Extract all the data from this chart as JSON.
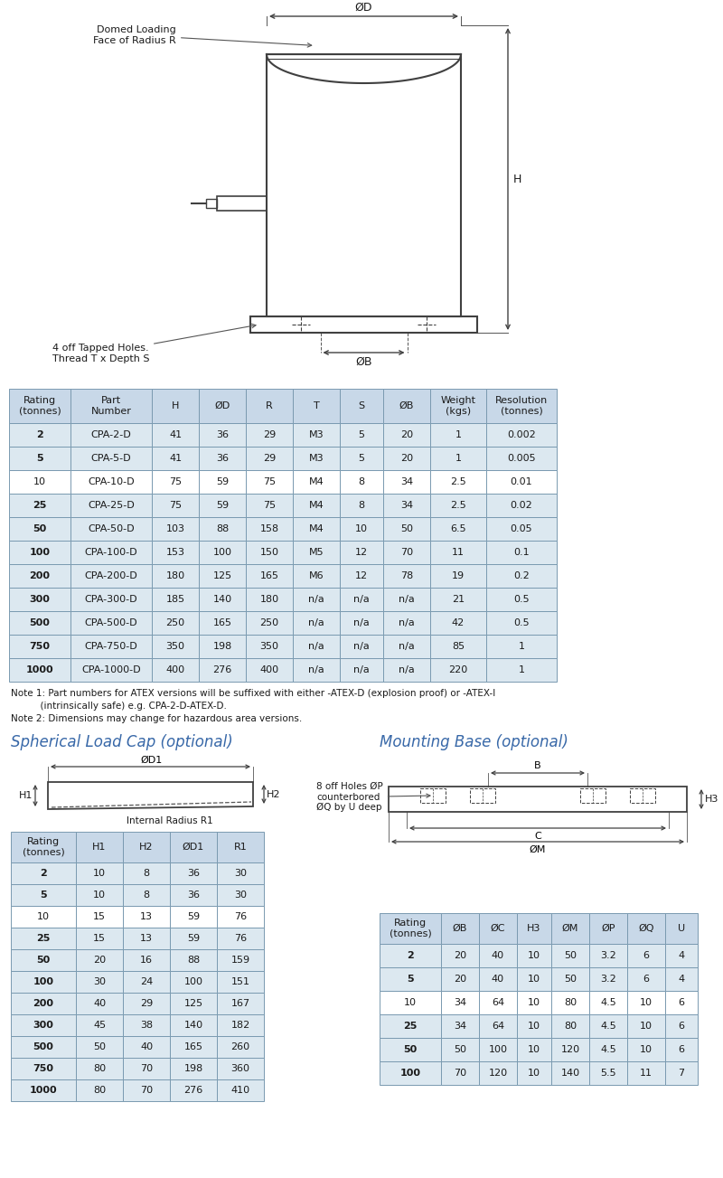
{
  "main_table_headers": [
    "Rating\n(tonnes)",
    "Part\nNumber",
    "H",
    "ØD",
    "R",
    "T",
    "S",
    "ØB",
    "Weight\n(kgs)",
    "Resolution\n(tonnes)"
  ],
  "main_table_data": [
    [
      "2",
      "CPA-2-D",
      "41",
      "36",
      "29",
      "M3",
      "5",
      "20",
      "1",
      "0.002"
    ],
    [
      "5",
      "CPA-5-D",
      "41",
      "36",
      "29",
      "M3",
      "5",
      "20",
      "1",
      "0.005"
    ],
    [
      "10",
      "CPA-10-D",
      "75",
      "59",
      "75",
      "M4",
      "8",
      "34",
      "2.5",
      "0.01"
    ],
    [
      "25",
      "CPA-25-D",
      "75",
      "59",
      "75",
      "M4",
      "8",
      "34",
      "2.5",
      "0.02"
    ],
    [
      "50",
      "CPA-50-D",
      "103",
      "88",
      "158",
      "M4",
      "10",
      "50",
      "6.5",
      "0.05"
    ],
    [
      "100",
      "CPA-100-D",
      "153",
      "100",
      "150",
      "M5",
      "12",
      "70",
      "11",
      "0.1"
    ],
    [
      "200",
      "CPA-200-D",
      "180",
      "125",
      "165",
      "M6",
      "12",
      "78",
      "19",
      "0.2"
    ],
    [
      "300",
      "CPA-300-D",
      "185",
      "140",
      "180",
      "n/a",
      "n/a",
      "n/a",
      "21",
      "0.5"
    ],
    [
      "500",
      "CPA-500-D",
      "250",
      "165",
      "250",
      "n/a",
      "n/a",
      "n/a",
      "42",
      "0.5"
    ],
    [
      "750",
      "CPA-750-D",
      "350",
      "198",
      "350",
      "n/a",
      "n/a",
      "n/a",
      "85",
      "1"
    ],
    [
      "1000",
      "CPA-1000-D",
      "400",
      "276",
      "400",
      "n/a",
      "n/a",
      "n/a",
      "220",
      "1"
    ]
  ],
  "note1": "Note 1: Part numbers for ATEX versions will be suffixed with either -ATEX-D (explosion proof) or -ATEX-I",
  "note1b": "          (intrinsically safe) e.g. CPA-2-D-ATEX-D.",
  "note2": "Note 2: Dimensions may change for hazardous area versions.",
  "cap_table_headers": [
    "Rating\n(tonnes)",
    "H1",
    "H2",
    "ØD1",
    "R1"
  ],
  "cap_table_data": [
    [
      "2",
      "10",
      "8",
      "36",
      "30"
    ],
    [
      "5",
      "10",
      "8",
      "36",
      "30"
    ],
    [
      "10",
      "15",
      "13",
      "59",
      "76"
    ],
    [
      "25",
      "15",
      "13",
      "59",
      "76"
    ],
    [
      "50",
      "20",
      "16",
      "88",
      "159"
    ],
    [
      "100",
      "30",
      "24",
      "100",
      "151"
    ],
    [
      "200",
      "40",
      "29",
      "125",
      "167"
    ],
    [
      "300",
      "45",
      "38",
      "140",
      "182"
    ],
    [
      "500",
      "50",
      "40",
      "165",
      "260"
    ],
    [
      "750",
      "80",
      "70",
      "198",
      "360"
    ],
    [
      "1000",
      "80",
      "70",
      "276",
      "410"
    ]
  ],
  "mount_table_headers": [
    "Rating\n(tonnes)",
    "ØB",
    "ØC",
    "H3",
    "ØM",
    "ØP",
    "ØQ",
    "U"
  ],
  "mount_table_data": [
    [
      "2",
      "20",
      "40",
      "10",
      "50",
      "3.2",
      "6",
      "4"
    ],
    [
      "5",
      "20",
      "40",
      "10",
      "50",
      "3.2",
      "6",
      "4"
    ],
    [
      "10",
      "34",
      "64",
      "10",
      "80",
      "4.5",
      "10",
      "6"
    ],
    [
      "25",
      "34",
      "64",
      "10",
      "80",
      "4.5",
      "10",
      "6"
    ],
    [
      "50",
      "50",
      "100",
      "10",
      "120",
      "4.5",
      "10",
      "6"
    ],
    [
      "100",
      "70",
      "120",
      "10",
      "140",
      "5.5",
      "11",
      "7"
    ]
  ],
  "header_bg": "#c8d8e8",
  "row_bg_alt": "#dce8f0",
  "row_bg_white": "#ffffff",
  "border_color": "#7a9ab0",
  "text_color": "#1a1a1a",
  "bold_ratings": [
    "2",
    "5",
    "25",
    "50",
    "100",
    "200",
    "300",
    "500",
    "750",
    "1000"
  ]
}
